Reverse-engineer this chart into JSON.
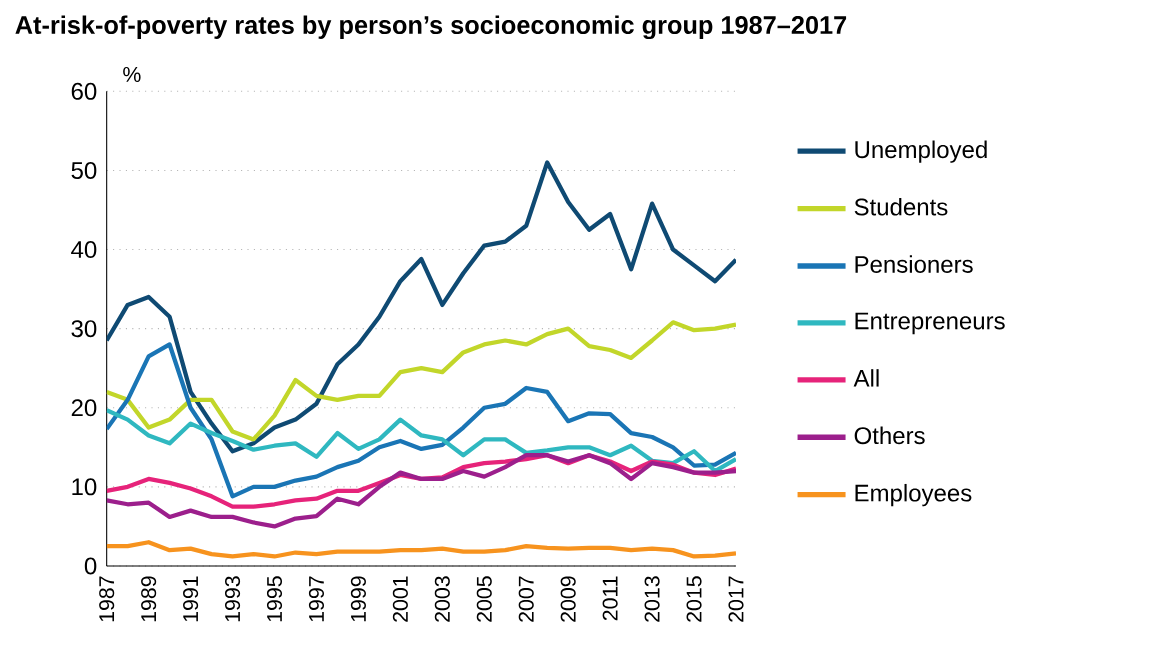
{
  "chart_data": {
    "type": "line",
    "title": "At-risk-of-poverty rates by person’s socioeconomic group 1987–2017",
    "ylabel": "%",
    "x": [
      1987,
      1988,
      1989,
      1990,
      1991,
      1992,
      1993,
      1994,
      1995,
      1996,
      1997,
      1998,
      1999,
      2000,
      2001,
      2002,
      2003,
      2004,
      2005,
      2006,
      2007,
      2008,
      2009,
      2010,
      2011,
      2012,
      2013,
      2014,
      2015,
      2016,
      2017
    ],
    "xlim": [
      1987,
      2017
    ],
    "xticks": [
      1987,
      1989,
      1991,
      1993,
      1995,
      1997,
      1999,
      2001,
      2003,
      2005,
      2007,
      2009,
      2011,
      2013,
      2015,
      2017
    ],
    "ylim": [
      0,
      60
    ],
    "yticks": [
      0,
      10,
      20,
      30,
      40,
      50,
      60
    ],
    "grid": "y",
    "legend": "right",
    "marker": "none",
    "line_style": "solid",
    "series": [
      {
        "name": "Unemployed",
        "color": "#0f4a73",
        "values": [
          28.5,
          33,
          34,
          31.5,
          22,
          18,
          14.5,
          15.5,
          17.5,
          18.5,
          20.5,
          25.5,
          28,
          31.5,
          36,
          38.8,
          33,
          37,
          40.5,
          41,
          43,
          51,
          46,
          42.5,
          44.5,
          37.5,
          45.8,
          40,
          38,
          36,
          38.7
        ]
      },
      {
        "name": "Students",
        "color": "#c2d62a",
        "values": [
          22,
          21,
          17.5,
          18.5,
          21,
          21,
          17,
          16,
          19,
          23.5,
          21.5,
          21,
          21.5,
          21.5,
          24.5,
          25,
          24.5,
          27,
          28,
          28.5,
          28,
          29.3,
          30,
          27.8,
          27.3,
          26.3,
          28.5,
          30.8,
          29.8,
          30,
          30.5
        ]
      },
      {
        "name": "Pensioners",
        "color": "#1a75b5",
        "values": [
          17.3,
          21,
          26.5,
          28,
          20,
          16,
          8.8,
          10,
          10,
          10.8,
          11.3,
          12.5,
          13.3,
          15,
          15.8,
          14.8,
          15.3,
          17.5,
          20,
          20.5,
          22.5,
          22,
          18.3,
          19.3,
          19.2,
          16.8,
          16.3,
          15,
          12.7,
          12.8,
          14.3
        ]
      },
      {
        "name": "Entrepreneurs",
        "color": "#2fb8c0",
        "values": [
          19.7,
          18.5,
          16.5,
          15.5,
          18,
          16.8,
          15.8,
          14.7,
          15.2,
          15.5,
          13.8,
          16.8,
          14.8,
          16,
          18.5,
          16.5,
          16,
          14,
          16,
          16,
          14.3,
          14.6,
          15,
          15,
          14,
          15.2,
          13.3,
          13,
          14.5,
          12,
          13.5
        ]
      },
      {
        "name": "All",
        "color": "#e6237a",
        "values": [
          9.5,
          10,
          11,
          10.5,
          9.8,
          8.8,
          7.5,
          7.5,
          7.8,
          8.3,
          8.5,
          9.5,
          9.5,
          10.5,
          11.5,
          11,
          11.2,
          12.5,
          13,
          13.2,
          13.5,
          14,
          13,
          14,
          13.2,
          12,
          13.2,
          12.8,
          11.8,
          11.5,
          12.3
        ]
      },
      {
        "name": "Others",
        "color": "#9c1f8c",
        "values": [
          8.3,
          7.8,
          8,
          6.2,
          7,
          6.2,
          6.2,
          5.5,
          5,
          6,
          6.3,
          8.5,
          7.8,
          10,
          11.8,
          11,
          11,
          12,
          11.3,
          12.5,
          14,
          14,
          13.2,
          14,
          13,
          11,
          13,
          12.5,
          11.8,
          11.8,
          12
        ]
      },
      {
        "name": "Employees",
        "color": "#f7931e",
        "values": [
          2.5,
          2.5,
          3,
          2,
          2.2,
          1.5,
          1.2,
          1.5,
          1.2,
          1.7,
          1.5,
          1.8,
          1.8,
          1.8,
          2,
          2,
          2.2,
          1.8,
          1.8,
          2,
          2.5,
          2.3,
          2.2,
          2.3,
          2.3,
          2,
          2.2,
          2,
          1.2,
          1.3,
          1.6
        ]
      }
    ]
  }
}
